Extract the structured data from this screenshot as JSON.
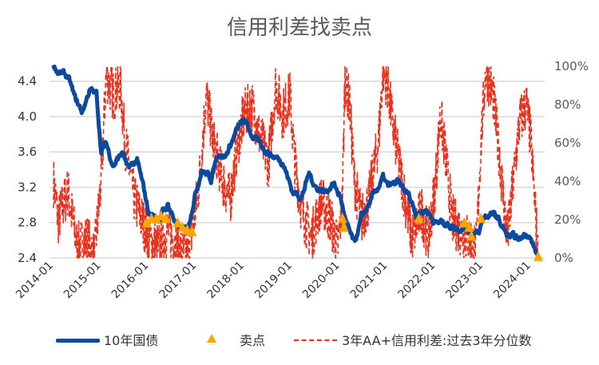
{
  "chart_data": {
    "type": "line",
    "title": "信用利差找卖点",
    "x_tick_labels": [
      "2014-01",
      "2015-01",
      "2016-01",
      "2017-01",
      "2018-01",
      "2019-01",
      "2020-01",
      "2021-01",
      "2022-01",
      "2023-01",
      "2024-01"
    ],
    "y_left": {
      "ticks": [
        "2.4",
        "2.8",
        "3.2",
        "3.6",
        "4.0",
        "4.4"
      ],
      "range": [
        2.4,
        4.6
      ]
    },
    "y_right": {
      "ticks": [
        "0%",
        "20%",
        "40%",
        "60%",
        "80%",
        "100%"
      ],
      "range": [
        0,
        100
      ]
    },
    "grid": true,
    "legend_position": "bottom",
    "series": [
      {
        "name": "10年国债",
        "axis": "left",
        "color": "#0b4a9e",
        "style": "solid-thick",
        "x": [
          2014.0,
          2014.1,
          2014.3,
          2014.45,
          2014.6,
          2014.75,
          2014.9,
          2015.0,
          2015.1,
          2015.25,
          2015.45,
          2015.55,
          2015.75,
          2015.9,
          2016.0,
          2016.2,
          2016.4,
          2016.6,
          2016.8,
          2016.95,
          2017.1,
          2017.3,
          2017.45,
          2017.6,
          2017.8,
          2017.9,
          2018.0,
          2018.2,
          2018.4,
          2018.6,
          2018.8,
          2019.0,
          2019.2,
          2019.35,
          2019.5,
          2019.7,
          2019.85,
          2020.0,
          2020.15,
          2020.3,
          2020.45,
          2020.6,
          2020.8,
          2020.9,
          2021.0,
          2021.2,
          2021.45,
          2021.6,
          2021.8,
          2022.0,
          2022.2,
          2022.4,
          2022.6,
          2022.8,
          2022.9,
          2023.0,
          2023.15,
          2023.3,
          2023.5,
          2023.75,
          2023.9,
          2024.0,
          2024.15
        ],
        "y": [
          4.6,
          4.5,
          4.45,
          4.2,
          4.05,
          4.3,
          4.25,
          3.6,
          3.7,
          3.45,
          3.6,
          3.4,
          3.5,
          3.15,
          2.9,
          2.85,
          3.0,
          2.75,
          2.7,
          3.1,
          3.4,
          3.3,
          3.6,
          3.55,
          3.8,
          3.9,
          3.95,
          3.75,
          3.65,
          3.55,
          3.5,
          3.15,
          3.1,
          3.35,
          3.2,
          3.15,
          3.25,
          3.1,
          2.75,
          2.55,
          2.85,
          3.0,
          3.2,
          3.3,
          3.2,
          3.25,
          3.1,
          2.9,
          2.95,
          2.8,
          2.8,
          2.75,
          2.75,
          2.7,
          2.65,
          2.85,
          2.9,
          2.85,
          2.65,
          2.6,
          2.7,
          2.6,
          2.4
        ]
      },
      {
        "name": "卖点",
        "axis": "left",
        "color": "#ffa500",
        "style": "triangle",
        "x": [
          2015.95,
          2016.05,
          2016.15,
          2016.25,
          2016.35,
          2016.6,
          2016.7,
          2016.8,
          2016.9,
          2020.05,
          2020.08,
          2021.65,
          2022.6,
          2022.7,
          2022.75,
          2022.95,
          2024.15
        ],
        "y": [
          2.8,
          2.85,
          2.85,
          2.88,
          2.85,
          2.8,
          2.75,
          2.72,
          2.7,
          2.85,
          2.75,
          2.85,
          2.8,
          2.75,
          2.65,
          2.85,
          2.42
        ]
      },
      {
        "name": "3年AA+信用利差:过去3年分位数",
        "axis": "right",
        "color": "#e8321e",
        "style": "dashed",
        "x": [
          2014.0,
          2014.1,
          2014.3,
          2014.5,
          2014.7,
          2014.85,
          2015.0,
          2015.1,
          2015.25,
          2015.4,
          2015.5,
          2015.7,
          2015.85,
          2016.0,
          2016.2,
          2016.4,
          2016.6,
          2016.8,
          2016.95,
          2017.05,
          2017.2,
          2017.35,
          2017.55,
          2017.7,
          2017.85,
          2018.0,
          2018.15,
          2018.3,
          2018.5,
          2018.65,
          2018.8,
          2018.95,
          2019.05,
          2019.2,
          2019.4,
          2019.6,
          2019.8,
          2019.95,
          2020.05,
          2020.1,
          2020.2,
          2020.3,
          2020.45,
          2020.6,
          2020.8,
          2020.9,
          2021.0,
          2021.1,
          2021.3,
          2021.5,
          2021.7,
          2021.85,
          2022.0,
          2022.1,
          2022.2,
          2022.35,
          2022.5,
          2022.7,
          2022.85,
          2022.95,
          2023.05,
          2023.2,
          2023.35,
          2023.5,
          2023.65,
          2023.75,
          2023.9,
          2024.0,
          2024.1,
          2024.15
        ],
        "y": [
          40,
          20,
          35,
          5,
          10,
          0,
          40,
          95,
          85,
          90,
          60,
          30,
          20,
          10,
          5,
          15,
          5,
          0,
          20,
          40,
          85,
          60,
          40,
          30,
          60,
          75,
          80,
          65,
          50,
          90,
          75,
          85,
          50,
          25,
          10,
          30,
          20,
          5,
          30,
          95,
          80,
          40,
          20,
          30,
          60,
          98,
          90,
          70,
          40,
          10,
          25,
          10,
          40,
          75,
          55,
          20,
          15,
          10,
          5,
          60,
          98,
          85,
          50,
          10,
          45,
          70,
          80,
          60,
          20,
          0
        ]
      }
    ]
  }
}
